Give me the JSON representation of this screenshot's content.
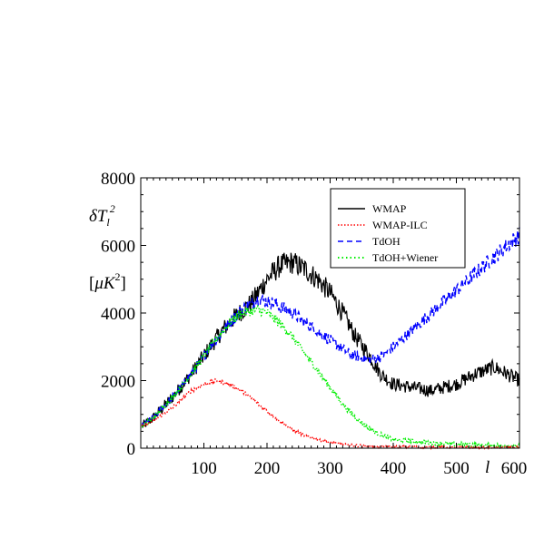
{
  "chart_data": {
    "type": "line",
    "title": "",
    "xlabel": "l",
    "ylabel_line1": "δT_l^2",
    "ylabel_line2": "[μK^2]",
    "xlim": [
      0,
      600
    ],
    "ylim": [
      0,
      8000
    ],
    "x_ticks": [
      100,
      200,
      300,
      400,
      500,
      600
    ],
    "x_tick_labels": [
      "100",
      "200",
      "300",
      "400",
      "500",
      "600"
    ],
    "y_ticks": [
      0,
      2000,
      4000,
      6000,
      8000
    ],
    "y_tick_labels": [
      "0",
      "2000",
      "4000",
      "6000",
      "8000"
    ],
    "grid": false,
    "legend_position": "top-right",
    "series": [
      {
        "name": "WMAP",
        "color": "#000000",
        "style": "solid",
        "noise": 250,
        "x": [
          2,
          20,
          50,
          80,
          110,
          130,
          150,
          175,
          200,
          220,
          240,
          260,
          280,
          300,
          320,
          340,
          360,
          380,
          400,
          430,
          460,
          500,
          530,
          560,
          600
        ],
        "y": [
          650,
          900,
          1500,
          2200,
          3000,
          3500,
          3900,
          4300,
          5000,
          5400,
          5500,
          5300,
          5000,
          4600,
          4000,
          3300,
          2800,
          2200,
          1900,
          1800,
          1700,
          1900,
          2200,
          2400,
          2000
        ]
      },
      {
        "name": "WMAP-ILC",
        "color": "#ff0000",
        "style": "dotted",
        "noise": 70,
        "x": [
          2,
          20,
          50,
          80,
          100,
          120,
          140,
          160,
          180,
          200,
          220,
          240,
          260,
          280,
          300,
          330,
          360,
          400,
          450,
          500,
          550,
          600
        ],
        "y": [
          650,
          800,
          1200,
          1700,
          1900,
          2000,
          1900,
          1700,
          1400,
          1100,
          800,
          550,
          380,
          250,
          170,
          90,
          60,
          40,
          30,
          25,
          20,
          20
        ]
      },
      {
        "name": "TdOH",
        "color": "#0000ff",
        "style": "dashed",
        "noise": 160,
        "x": [
          2,
          20,
          50,
          80,
          110,
          140,
          160,
          185,
          210,
          240,
          270,
          300,
          330,
          360,
          380,
          400,
          430,
          460,
          490,
          520,
          550,
          580,
          600
        ],
        "y": [
          650,
          900,
          1500,
          2200,
          3000,
          3700,
          4100,
          4400,
          4300,
          4000,
          3600,
          3200,
          2800,
          2600,
          2700,
          3000,
          3500,
          4000,
          4500,
          5000,
          5500,
          6000,
          6300
        ]
      },
      {
        "name": "TdOH+Wiener",
        "color": "#00ee00",
        "style": "dotted",
        "noise": 120,
        "x": [
          2,
          20,
          50,
          80,
          110,
          140,
          160,
          185,
          200,
          220,
          240,
          260,
          280,
          300,
          320,
          340,
          360,
          380,
          400,
          450,
          500,
          550,
          600
        ],
        "y": [
          650,
          900,
          1500,
          2200,
          3000,
          3700,
          4000,
          4100,
          4000,
          3700,
          3300,
          2800,
          2300,
          1800,
          1300,
          900,
          600,
          400,
          250,
          170,
          120,
          90,
          60
        ]
      }
    ]
  }
}
